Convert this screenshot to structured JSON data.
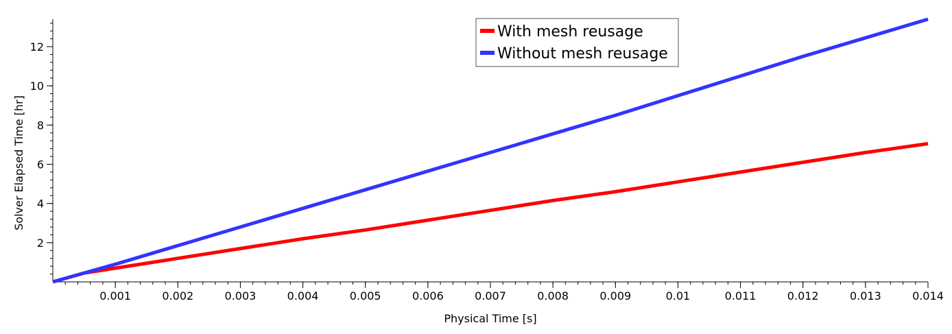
{
  "chart_data": {
    "type": "line",
    "title": "",
    "xlabel": "Physical Time [s]",
    "ylabel": "Solver Elapsed Time [hr]",
    "xlim": [
      0,
      0.014
    ],
    "ylim": [
      0,
      13.4
    ],
    "x_ticks": [
      0.001,
      0.002,
      0.003,
      0.004,
      0.005,
      0.006,
      0.007,
      0.008,
      0.009,
      0.01,
      0.011,
      0.012,
      0.013,
      0.014
    ],
    "x_tick_labels": [
      "0.001",
      "0.002",
      "0.003",
      "0.004",
      "0.005",
      "0.006",
      "0.007",
      "0.008",
      "0.009",
      "0.01",
      "0.011",
      "0.012",
      "0.013",
      "0.014"
    ],
    "y_ticks": [
      2,
      4,
      6,
      8,
      10,
      12
    ],
    "y_tick_labels": [
      "2",
      "4",
      "6",
      "8",
      "10",
      "12"
    ],
    "grid": false,
    "legend_position": "top-right",
    "series": [
      {
        "name": "With mesh reusage",
        "color": "#ff0000",
        "x": [
          0,
          0.0005,
          0.001,
          0.002,
          0.003,
          0.004,
          0.005,
          0.006,
          0.007,
          0.008,
          0.009,
          0.01,
          0.011,
          0.012,
          0.013,
          0.014
        ],
        "y": [
          0,
          0.45,
          0.7,
          1.2,
          1.7,
          2.2,
          2.65,
          3.15,
          3.65,
          4.15,
          4.6,
          5.1,
          5.6,
          6.1,
          6.6,
          7.05
        ]
      },
      {
        "name": "Without mesh reusage",
        "color": "#3333ff",
        "x": [
          0,
          0.0005,
          0.001,
          0.002,
          0.003,
          0.004,
          0.005,
          0.006,
          0.007,
          0.008,
          0.009,
          0.01,
          0.011,
          0.012,
          0.013,
          0.014
        ],
        "y": [
          0,
          0.45,
          0.9,
          1.85,
          2.8,
          3.75,
          4.7,
          5.65,
          6.6,
          7.55,
          8.5,
          9.5,
          10.5,
          11.5,
          12.45,
          13.4
        ]
      }
    ]
  }
}
